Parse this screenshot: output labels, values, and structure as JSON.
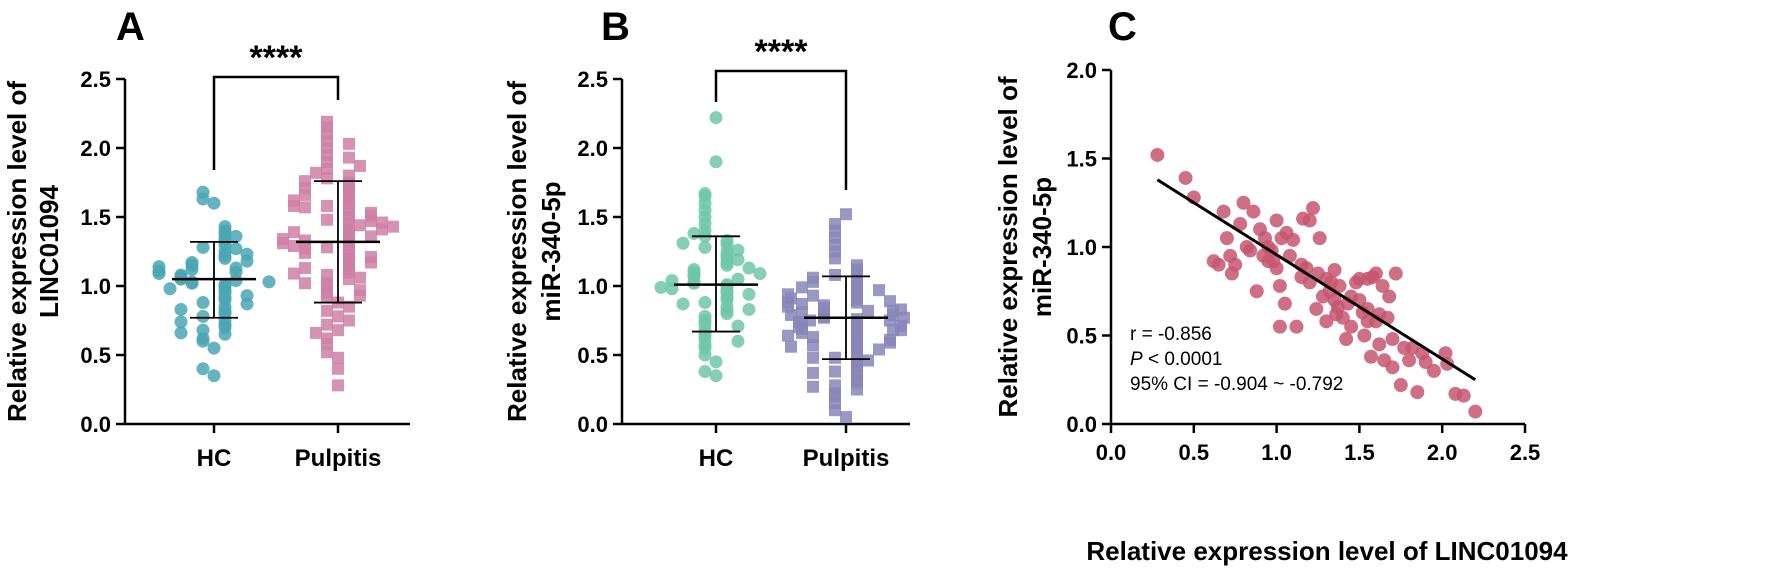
{
  "chart_data": [
    {
      "panel": "A",
      "type": "scatter",
      "subtype": "dot-plot",
      "categories": [
        "HC",
        "Pulpitis"
      ],
      "ylabel_lines": [
        "Relative expression level of",
        "LINC01094"
      ],
      "ylim": [
        0,
        2.5
      ],
      "yticks": [
        "0.0",
        "0.5",
        "1.0",
        "1.5",
        "2.0",
        "2.5"
      ],
      "significance": "****",
      "colors": {
        "HC": "#4aa6b3",
        "Pulpitis": "#cf7fa4"
      },
      "markers": {
        "HC": "circle",
        "Pulpitis": "square"
      },
      "series": [
        {
          "category": "HC",
          "mean": 1.05,
          "sd_low": 0.77,
          "sd_high": 1.32,
          "values": [
            0.35,
            0.4,
            0.55,
            0.6,
            0.62,
            0.65,
            0.68,
            0.7,
            0.72,
            0.75,
            0.78,
            0.8,
            0.82,
            0.85,
            0.88,
            0.9,
            0.92,
            0.95,
            0.97,
            1.0,
            1.01,
            1.02,
            1.03,
            1.04,
            1.05,
            1.06,
            1.07,
            1.08,
            1.1,
            1.12,
            1.13,
            1.15,
            1.17,
            1.2,
            1.22,
            1.25,
            1.28,
            1.3,
            1.33,
            1.35,
            1.38,
            1.4,
            1.43,
            1.6,
            1.63,
            1.68,
            0.98,
            1.09,
            1.18,
            0.83,
            0.93,
            1.27,
            0.74,
            1.36,
            1.11,
            0.87,
            1.23,
            0.66,
            1.14,
            1.03
          ]
        },
        {
          "category": "Pulpitis",
          "mean": 1.32,
          "sd_low": 0.88,
          "sd_high": 1.76,
          "values": [
            0.28,
            0.4,
            0.48,
            0.52,
            0.58,
            0.62,
            0.68,
            0.72,
            0.78,
            0.82,
            0.88,
            0.92,
            0.95,
            1.0,
            1.02,
            1.05,
            1.08,
            1.1,
            1.12,
            1.15,
            1.18,
            1.2,
            1.22,
            1.25,
            1.28,
            1.3,
            1.32,
            1.35,
            1.38,
            1.4,
            1.42,
            1.45,
            1.48,
            1.5,
            1.52,
            1.55,
            1.58,
            1.6,
            1.62,
            1.65,
            1.68,
            1.7,
            1.72,
            1.75,
            1.78,
            1.8,
            1.85,
            1.9,
            1.95,
            2.0,
            2.05,
            2.1,
            2.15,
            2.19,
            1.33,
            1.27,
            1.44,
            1.36,
            1.57,
            1.13,
            0.97,
            1.66,
            1.47,
            1.24,
            1.53,
            0.85,
            1.71,
            1.39,
            1.06,
            1.82,
            1.29,
            0.75,
            1.62,
            1.41,
            1.17,
            1.93,
            1.51,
            1.34,
            1.02,
            1.76,
            1.46,
            0.66,
            1.21,
            1.58,
            1.09,
            1.87,
            1.31,
            1.43,
            2.03,
            0.93
          ]
        }
      ]
    },
    {
      "panel": "B",
      "type": "scatter",
      "subtype": "dot-plot",
      "categories": [
        "HC",
        "Pulpitis"
      ],
      "ylabel_lines": [
        "Relative expression level of",
        "miR-340-5p"
      ],
      "ylim": [
        0,
        2.5
      ],
      "yticks": [
        "0.0",
        "0.5",
        "1.0",
        "1.5",
        "2.0",
        "2.5"
      ],
      "significance": "****",
      "colors": {
        "HC": "#6fc7a8",
        "Pulpitis": "#8786b9"
      },
      "markers": {
        "HC": "circle",
        "Pulpitis": "square"
      },
      "series": [
        {
          "category": "HC",
          "mean": 1.01,
          "sd_low": 0.67,
          "sd_high": 1.36,
          "values": [
            0.35,
            0.38,
            0.45,
            0.5,
            0.55,
            0.58,
            0.62,
            0.65,
            0.68,
            0.72,
            0.75,
            0.78,
            0.8,
            0.82,
            0.85,
            0.88,
            0.9,
            0.92,
            0.95,
            0.97,
            1.0,
            1.01,
            1.02,
            1.03,
            1.05,
            1.07,
            1.08,
            1.1,
            1.12,
            1.15,
            1.17,
            1.2,
            1.22,
            1.25,
            1.28,
            1.3,
            1.33,
            1.36,
            1.4,
            1.45,
            1.5,
            1.55,
            1.6,
            1.65,
            1.67,
            1.9,
            2.22,
            0.98,
            1.04,
            0.87,
            1.13,
            0.71,
            1.26,
            0.94,
            1.19,
            0.6,
            1.38,
            0.83,
            1.09,
            0.99,
            1.31
          ]
        },
        {
          "category": "Pulpitis",
          "mean": 0.77,
          "sd_low": 0.47,
          "sd_high": 1.07,
          "values": [
            0.05,
            0.1,
            0.15,
            0.2,
            0.22,
            0.25,
            0.28,
            0.3,
            0.32,
            0.35,
            0.38,
            0.4,
            0.42,
            0.45,
            0.48,
            0.5,
            0.52,
            0.55,
            0.58,
            0.6,
            0.62,
            0.65,
            0.67,
            0.7,
            0.72,
            0.74,
            0.76,
            0.77,
            0.78,
            0.8,
            0.82,
            0.84,
            0.86,
            0.88,
            0.9,
            0.92,
            0.95,
            0.98,
            1.0,
            1.02,
            1.05,
            1.08,
            1.1,
            1.12,
            1.15,
            1.2,
            1.25,
            1.3,
            1.35,
            1.4,
            1.45,
            1.52,
            0.63,
            0.73,
            0.81,
            0.69,
            0.57,
            0.87,
            0.93,
            0.75,
            0.66,
            0.79,
            0.54,
            0.97,
            0.71,
            0.83,
            0.61,
            0.89,
            0.46,
            0.77,
            0.68,
            1.03,
            0.59,
            0.85,
            0.74,
            0.91,
            0.37,
            0.79,
            0.64,
            0.99,
            0.7,
            0.56,
            0.82,
            0.27,
            1.06,
            0.75,
            0.68,
            0.88,
            0.48,
            0.94
          ]
        }
      ]
    },
    {
      "panel": "C",
      "type": "scatter",
      "xlabel": "Relative expression level of LINC01094",
      "ylabel_lines": [
        "Relative expression level of",
        "miR-340-5p"
      ],
      "xlim": [
        0,
        2.5
      ],
      "ylim": [
        0,
        2.0
      ],
      "xticks": [
        "0.0",
        "0.5",
        "1.0",
        "1.5",
        "2.0",
        "2.5"
      ],
      "yticks": [
        "0.0",
        "0.5",
        "1.0",
        "1.5",
        "2.0"
      ],
      "color": "#c75670",
      "regression": {
        "x1": 0.28,
        "y1": 1.38,
        "x2": 2.2,
        "y2": 0.25
      },
      "stats": {
        "r_text": "r = -0.856",
        "p_symbol": "P",
        "p_text": " < 0.0001",
        "ci_text": "95% CI = -0.904 ~ -0.792"
      },
      "points": [
        [
          0.28,
          1.52
        ],
        [
          0.45,
          1.39
        ],
        [
          0.5,
          1.28
        ],
        [
          0.62,
          0.92
        ],
        [
          0.65,
          0.9
        ],
        [
          0.68,
          1.2
        ],
        [
          0.7,
          1.05
        ],
        [
          0.72,
          0.95
        ],
        [
          0.73,
          0.85
        ],
        [
          0.75,
          0.9
        ],
        [
          0.78,
          1.13
        ],
        [
          0.8,
          1.25
        ],
        [
          0.82,
          1.0
        ],
        [
          0.84,
          0.98
        ],
        [
          0.86,
          1.2
        ],
        [
          0.88,
          0.75
        ],
        [
          0.9,
          1.1
        ],
        [
          0.92,
          0.95
        ],
        [
          0.93,
          1.05
        ],
        [
          0.95,
          1.0
        ],
        [
          0.97,
          0.98
        ],
        [
          0.98,
          0.92
        ],
        [
          1.0,
          1.15
        ],
        [
          1.0,
          0.88
        ],
        [
          1.02,
          0.78
        ],
        [
          1.02,
          0.55
        ],
        [
          1.03,
          1.05
        ],
        [
          1.05,
          0.68
        ],
        [
          1.06,
          1.08
        ],
        [
          1.08,
          0.95
        ],
        [
          1.1,
          1.04
        ],
        [
          1.12,
          0.55
        ],
        [
          1.15,
          0.83
        ],
        [
          1.16,
          1.16
        ],
        [
          1.18,
          0.88
        ],
        [
          1.2,
          1.15
        ],
        [
          1.2,
          0.8
        ],
        [
          1.22,
          1.22
        ],
        [
          1.24,
          0.65
        ],
        [
          1.25,
          0.85
        ],
        [
          1.26,
          1.05
        ],
        [
          1.28,
          0.72
        ],
        [
          1.3,
          0.58
        ],
        [
          1.3,
          0.82
        ],
        [
          1.32,
          0.75
        ],
        [
          1.33,
          0.8
        ],
        [
          1.35,
          0.7
        ],
        [
          1.36,
          0.62
        ],
        [
          1.37,
          0.66
        ],
        [
          1.38,
          0.78
        ],
        [
          1.4,
          0.6
        ],
        [
          1.42,
          0.48
        ],
        [
          1.43,
          0.68
        ],
        [
          1.45,
          0.72
        ],
        [
          1.45,
          0.55
        ],
        [
          1.48,
          0.8
        ],
        [
          1.5,
          0.82
        ],
        [
          1.5,
          0.7
        ],
        [
          1.52,
          0.63
        ],
        [
          1.53,
          0.5
        ],
        [
          1.55,
          0.82
        ],
        [
          1.55,
          0.65
        ],
        [
          1.57,
          0.38
        ],
        [
          1.58,
          0.83
        ],
        [
          1.6,
          0.58
        ],
        [
          1.6,
          0.85
        ],
        [
          1.62,
          0.62
        ],
        [
          1.62,
          0.45
        ],
        [
          1.64,
          0.78
        ],
        [
          1.65,
          0.36
        ],
        [
          1.67,
          0.6
        ],
        [
          1.68,
          0.72
        ],
        [
          1.7,
          0.32
        ],
        [
          1.7,
          0.48
        ],
        [
          1.72,
          0.85
        ],
        [
          1.75,
          0.22
        ],
        [
          1.77,
          0.43
        ],
        [
          1.8,
          0.36
        ],
        [
          1.82,
          0.43
        ],
        [
          1.85,
          0.18
        ],
        [
          1.88,
          0.4
        ],
        [
          1.9,
          0.35
        ],
        [
          1.95,
          0.3
        ],
        [
          2.02,
          0.4
        ],
        [
          2.03,
          0.34
        ],
        [
          2.08,
          0.17
        ],
        [
          2.13,
          0.16
        ],
        [
          2.2,
          0.07
        ],
        [
          1.35,
          0.87
        ],
        [
          1.15,
          0.9
        ],
        [
          1.55,
          0.58
        ],
        [
          0.95,
          0.92
        ]
      ]
    }
  ]
}
